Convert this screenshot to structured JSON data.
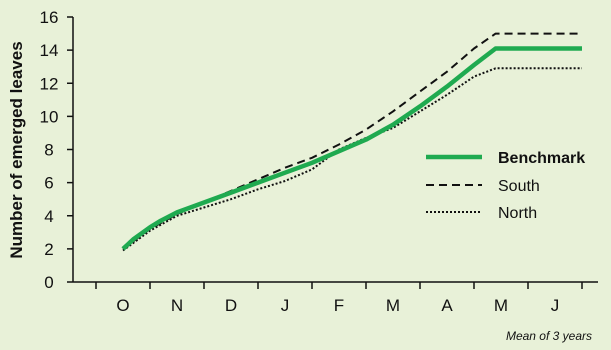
{
  "chart_data": {
    "type": "line",
    "title": "",
    "xlabel": "",
    "ylabel": "Number of emerged leaves",
    "categories": [
      "O",
      "N",
      "D",
      "J",
      "F",
      "M",
      "A",
      "M",
      "J"
    ],
    "ylim": [
      0,
      16
    ],
    "yticks": [
      0,
      2,
      4,
      6,
      8,
      10,
      12,
      14,
      16
    ],
    "grid": false,
    "legend_position": "right",
    "note": "Mean of 3 years",
    "series": [
      {
        "name": "Benchmark",
        "style": "solid",
        "color": "#1faa50",
        "x": [
          0,
          0.2,
          0.5,
          0.7,
          1.0,
          1.5,
          2.0,
          2.5,
          3.0,
          3.5,
          4.0,
          4.5,
          5.0,
          5.5,
          6.0,
          6.5,
          6.9,
          7.2,
          7.5,
          8.5
        ],
        "y": [
          2.0,
          2.6,
          3.3,
          3.7,
          4.2,
          4.8,
          5.4,
          6.0,
          6.6,
          7.2,
          7.9,
          8.6,
          9.5,
          10.6,
          11.8,
          13.1,
          14.1,
          14.1,
          14.1,
          14.1
        ]
      },
      {
        "name": "South",
        "style": "dashed",
        "color": "#111111",
        "x": [
          0,
          0.5,
          1.0,
          1.5,
          2.0,
          2.5,
          3.0,
          3.5,
          4.0,
          4.5,
          5.0,
          5.5,
          6.0,
          6.5,
          6.9,
          7.2,
          7.5,
          8.5
        ],
        "y": [
          2.0,
          3.2,
          4.1,
          4.8,
          5.5,
          6.2,
          6.9,
          7.5,
          8.3,
          9.2,
          10.3,
          11.5,
          12.7,
          14.1,
          15.0,
          15.0,
          15.0,
          15.0
        ]
      },
      {
        "name": "North",
        "style": "dotted",
        "color": "#111111",
        "x": [
          0,
          0.5,
          1.0,
          1.5,
          2.0,
          2.5,
          3.0,
          3.5,
          4.0,
          4.5,
          5.0,
          5.5,
          6.0,
          6.5,
          6.9,
          7.2,
          7.5,
          8.5
        ],
        "y": [
          1.9,
          3.1,
          4.0,
          4.5,
          5.0,
          5.6,
          6.1,
          6.8,
          8.0,
          8.7,
          9.3,
          10.3,
          11.3,
          12.4,
          12.9,
          12.9,
          12.9,
          12.9
        ]
      }
    ]
  }
}
